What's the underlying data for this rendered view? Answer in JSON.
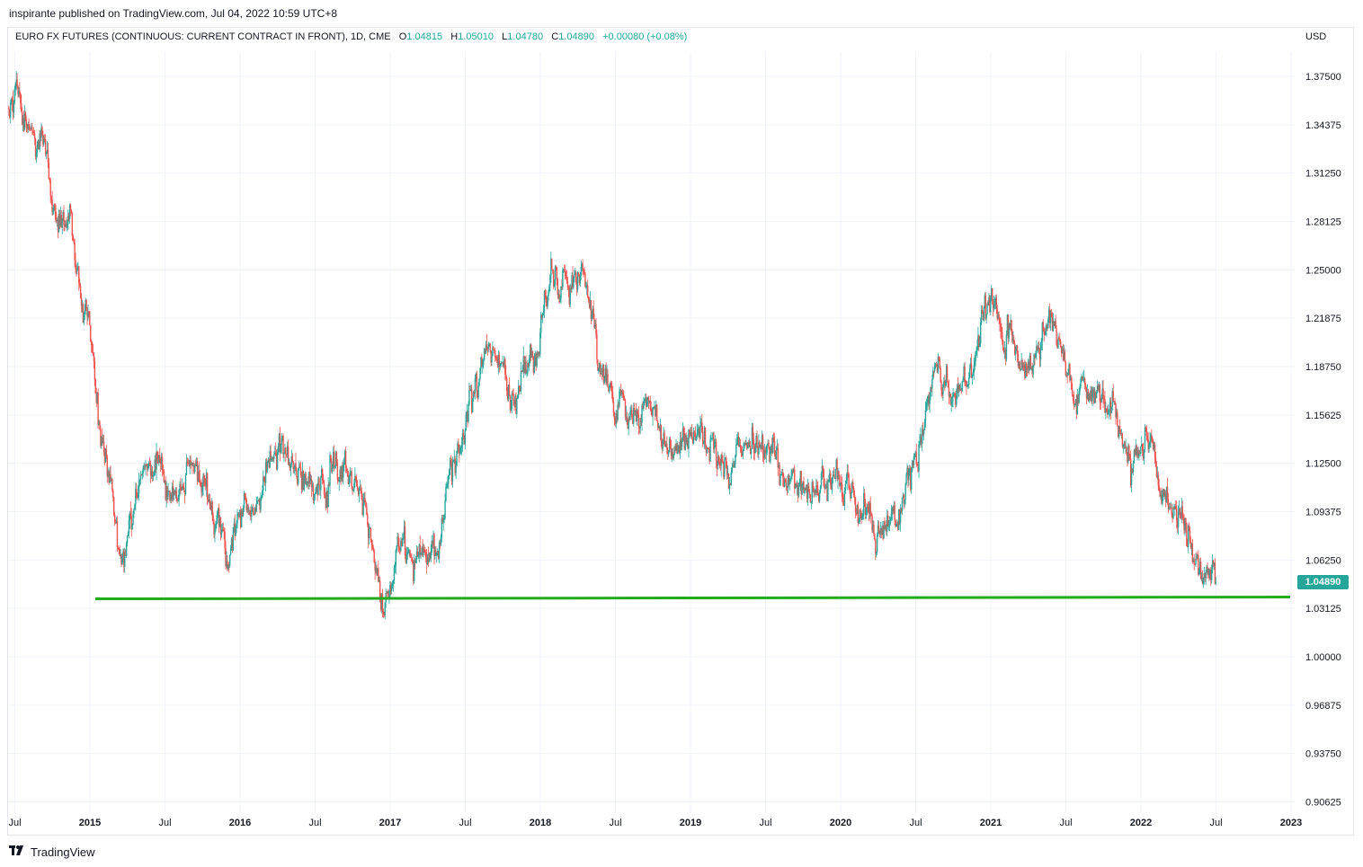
{
  "header": {
    "published": "inspirante published on TradingView.com, Jul 04, 2022 10:59 UTC+8"
  },
  "legend": {
    "symbol": "EURO FX FUTURES (CONTINUOUS: CURRENT CONTRACT IN FRONT), 1D, CME",
    "open_label": "O",
    "open": "1.04815",
    "high_label": "H",
    "high": "1.05010",
    "low_label": "L",
    "low": "1.04780",
    "close_label": "C",
    "close": "1.04890",
    "change": "+0.00080 (+0.08%)"
  },
  "currency": "USD",
  "price_tag": "1.04890",
  "footer": {
    "brand": "TradingView",
    "logo_icon": "tradingview-logo-icon"
  },
  "colors": {
    "up": "#26a69a",
    "down": "#ef5350",
    "support_line": "#22ab1c",
    "grid": "#f0f3fa"
  },
  "chart_data": {
    "type": "candlestick",
    "y_ticks": [
      "1.37500",
      "1.34375",
      "1.31250",
      "1.28125",
      "1.25000",
      "1.21875",
      "1.18750",
      "1.15625",
      "1.12500",
      "1.09375",
      "1.06250",
      "1.03125",
      "1.00000",
      "0.96875",
      "0.93750",
      "0.90625"
    ],
    "y_tick_values": [
      1.375,
      1.34375,
      1.3125,
      1.28125,
      1.25,
      1.21875,
      1.1875,
      1.15625,
      1.125,
      1.09375,
      1.0625,
      1.03125,
      1.0,
      0.96875,
      0.9375,
      0.90625
    ],
    "ylim": [
      0.9,
      1.4
    ],
    "x_ticks": [
      {
        "label": "Jul",
        "t": 2014.5,
        "bold": false
      },
      {
        "label": "2015",
        "t": 2015.0,
        "bold": true
      },
      {
        "label": "Jul",
        "t": 2015.5,
        "bold": false
      },
      {
        "label": "2016",
        "t": 2016.0,
        "bold": true
      },
      {
        "label": "Jul",
        "t": 2016.5,
        "bold": false
      },
      {
        "label": "2017",
        "t": 2017.0,
        "bold": true
      },
      {
        "label": "Jul",
        "t": 2017.5,
        "bold": false
      },
      {
        "label": "2018",
        "t": 2018.0,
        "bold": true
      },
      {
        "label": "Jul",
        "t": 2018.5,
        "bold": false
      },
      {
        "label": "2019",
        "t": 2019.0,
        "bold": true
      },
      {
        "label": "Jul",
        "t": 2019.5,
        "bold": false
      },
      {
        "label": "2020",
        "t": 2020.0,
        "bold": true
      },
      {
        "label": "Jul",
        "t": 2020.5,
        "bold": false
      },
      {
        "label": "2021",
        "t": 2021.0,
        "bold": true
      },
      {
        "label": "Jul",
        "t": 2021.5,
        "bold": false
      },
      {
        "label": "2022",
        "t": 2022.0,
        "bold": true
      },
      {
        "label": "Jul",
        "t": 2022.5,
        "bold": false
      },
      {
        "label": "2023",
        "t": 2023.0,
        "bold": true
      }
    ],
    "path": [
      [
        2014.46,
        1.355
      ],
      [
        2014.52,
        1.368
      ],
      [
        2014.6,
        1.345
      ],
      [
        2014.68,
        1.33
      ],
      [
        2014.75,
        1.295
      ],
      [
        2014.85,
        1.28
      ],
      [
        2014.92,
        1.25
      ],
      [
        2015.0,
        1.21
      ],
      [
        2015.05,
        1.16
      ],
      [
        2015.12,
        1.13
      ],
      [
        2015.2,
        1.06
      ],
      [
        2015.28,
        1.08
      ],
      [
        2015.35,
        1.12
      ],
      [
        2015.45,
        1.14
      ],
      [
        2015.55,
        1.1
      ],
      [
        2015.62,
        1.12
      ],
      [
        2015.7,
        1.13
      ],
      [
        2015.78,
        1.12
      ],
      [
        2015.85,
        1.08
      ],
      [
        2015.92,
        1.06
      ],
      [
        2016.0,
        1.09
      ],
      [
        2016.1,
        1.1
      ],
      [
        2016.2,
        1.12
      ],
      [
        2016.3,
        1.14
      ],
      [
        2016.38,
        1.13
      ],
      [
        2016.45,
        1.115
      ],
      [
        2016.55,
        1.1
      ],
      [
        2016.62,
        1.12
      ],
      [
        2016.7,
        1.12
      ],
      [
        2016.78,
        1.11
      ],
      [
        2016.85,
        1.085
      ],
      [
        2016.92,
        1.05
      ],
      [
        2016.97,
        1.04
      ],
      [
        2017.05,
        1.065
      ],
      [
        2017.15,
        1.06
      ],
      [
        2017.25,
        1.07
      ],
      [
        2017.35,
        1.085
      ],
      [
        2017.42,
        1.12
      ],
      [
        2017.5,
        1.145
      ],
      [
        2017.58,
        1.18
      ],
      [
        2017.65,
        1.2
      ],
      [
        2017.75,
        1.18
      ],
      [
        2017.82,
        1.165
      ],
      [
        2017.9,
        1.185
      ],
      [
        2017.98,
        1.205
      ],
      [
        2018.05,
        1.24
      ],
      [
        2018.12,
        1.25
      ],
      [
        2018.2,
        1.235
      ],
      [
        2018.28,
        1.24
      ],
      [
        2018.35,
        1.215
      ],
      [
        2018.4,
        1.185
      ],
      [
        2018.48,
        1.165
      ],
      [
        2018.55,
        1.17
      ],
      [
        2018.62,
        1.155
      ],
      [
        2018.7,
        1.165
      ],
      [
        2018.75,
        1.16
      ],
      [
        2018.82,
        1.14
      ],
      [
        2018.9,
        1.135
      ],
      [
        2018.98,
        1.15
      ],
      [
        2019.05,
        1.145
      ],
      [
        2019.15,
        1.135
      ],
      [
        2019.25,
        1.125
      ],
      [
        2019.35,
        1.13
      ],
      [
        2019.45,
        1.135
      ],
      [
        2019.55,
        1.125
      ],
      [
        2019.62,
        1.115
      ],
      [
        2019.7,
        1.11
      ],
      [
        2019.8,
        1.105
      ],
      [
        2019.9,
        1.115
      ],
      [
        2019.98,
        1.12
      ],
      [
        2020.05,
        1.11
      ],
      [
        2020.12,
        1.09
      ],
      [
        2020.18,
        1.11
      ],
      [
        2020.22,
        1.08
      ],
      [
        2020.3,
        1.085
      ],
      [
        2020.4,
        1.09
      ],
      [
        2020.45,
        1.12
      ],
      [
        2020.52,
        1.14
      ],
      [
        2020.58,
        1.175
      ],
      [
        2020.65,
        1.185
      ],
      [
        2020.72,
        1.18
      ],
      [
        2020.8,
        1.175
      ],
      [
        2020.88,
        1.19
      ],
      [
        2020.95,
        1.21
      ],
      [
        2021.0,
        1.225
      ],
      [
        2021.05,
        1.215
      ],
      [
        2021.12,
        1.2
      ],
      [
        2021.2,
        1.185
      ],
      [
        2021.28,
        1.195
      ],
      [
        2021.35,
        1.21
      ],
      [
        2021.42,
        1.215
      ],
      [
        2021.48,
        1.195
      ],
      [
        2021.55,
        1.18
      ],
      [
        2021.62,
        1.175
      ],
      [
        2021.7,
        1.18
      ],
      [
        2021.78,
        1.165
      ],
      [
        2021.85,
        1.155
      ],
      [
        2021.9,
        1.135
      ],
      [
        2021.95,
        1.13
      ],
      [
        2022.0,
        1.135
      ],
      [
        2022.05,
        1.14
      ],
      [
        2022.1,
        1.135
      ],
      [
        2022.15,
        1.12
      ],
      [
        2022.2,
        1.1
      ],
      [
        2022.25,
        1.09
      ],
      [
        2022.3,
        1.085
      ],
      [
        2022.35,
        1.07
      ],
      [
        2022.4,
        1.05
      ],
      [
        2022.45,
        1.065
      ],
      [
        2022.5,
        1.05
      ]
    ],
    "seed": 20220704,
    "support_line": {
      "value": 1.038,
      "x_start": 2015.0,
      "x_end": 2023.0
    }
  }
}
